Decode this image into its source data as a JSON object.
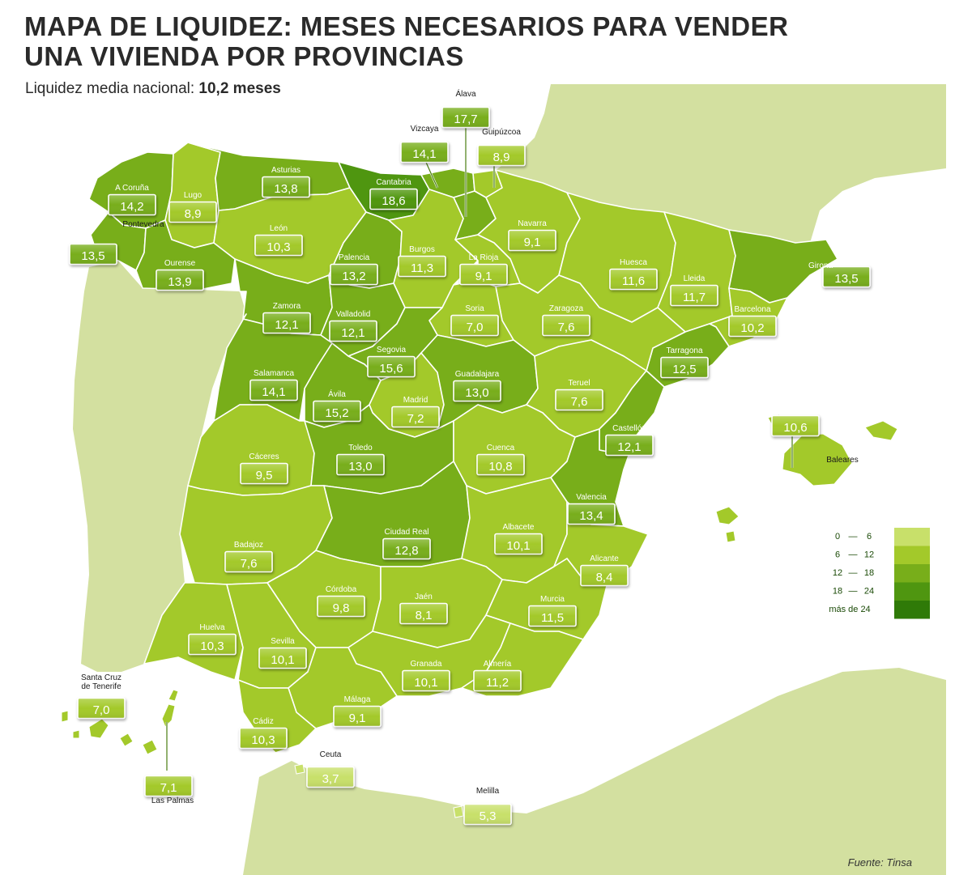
{
  "title_line1": "MAPA DE LIQUIDEZ: MESES NECESARIOS PARA VENDER",
  "title_line2": "UNA VIVIENDA POR PROVINCIAS",
  "subtitle_label": "Liquidez media nacional:",
  "subtitle_value": "10,2 meses",
  "source": "Fuente: Tinsa",
  "colors": {
    "land_other": "#d3e0a0",
    "sea": "#ffffff",
    "border": "#ffffff",
    "bin_0_6": "#c8e06a",
    "bin_6_12": "#a3c92a",
    "bin_12_18": "#78ae1a",
    "bin_18_24": "#4f9610",
    "bin_24_plus": "#2f7a08"
  },
  "legend": [
    {
      "min": "0",
      "max": "6",
      "color": "#c8e06a"
    },
    {
      "min": "6",
      "max": "12",
      "color": "#a3c92a"
    },
    {
      "min": "12",
      "max": "18",
      "color": "#78ae1a"
    },
    {
      "min": "18",
      "max": "24",
      "color": "#4f9610"
    },
    {
      "label": "más de 24",
      "color": "#2f7a08"
    }
  ],
  "provinces": [
    {
      "name": "A Coruña",
      "value": "14,2"
    },
    {
      "name": "Lugo",
      "value": "8,9"
    },
    {
      "name": "Asturias",
      "value": "13,8"
    },
    {
      "name": "Cantabria",
      "value": "18,6"
    },
    {
      "name": "Vizcaya",
      "value": "14,1"
    },
    {
      "name": "Álava",
      "value": "17,7"
    },
    {
      "name": "Guipúzcoa",
      "value": "8,9"
    },
    {
      "name": "Navarra",
      "value": "9,1"
    },
    {
      "name": "Pontevedra",
      "value": "13,5"
    },
    {
      "name": "Ourense",
      "value": "13,9"
    },
    {
      "name": "León",
      "value": "10,3"
    },
    {
      "name": "Palencia",
      "value": "13,2"
    },
    {
      "name": "Burgos",
      "value": "11,3"
    },
    {
      "name": "La Rioja",
      "value": "9,1"
    },
    {
      "name": "Huesca",
      "value": "11,6"
    },
    {
      "name": "Lleida",
      "value": "11,7"
    },
    {
      "name": "Girona",
      "value": "13,5"
    },
    {
      "name": "Barcelona",
      "value": "10,2"
    },
    {
      "name": "Tarragona",
      "value": "12,5"
    },
    {
      "name": "Zaragoza",
      "value": "7,6"
    },
    {
      "name": "Soria",
      "value": "7,0"
    },
    {
      "name": "Zamora",
      "value": "12,1"
    },
    {
      "name": "Valladolid",
      "value": "12,1"
    },
    {
      "name": "Segovia",
      "value": "15,6"
    },
    {
      "name": "Salamanca",
      "value": "14,1"
    },
    {
      "name": "Ávila",
      "value": "15,2"
    },
    {
      "name": "Madrid",
      "value": "7,2"
    },
    {
      "name": "Guadalajara",
      "value": "13,0"
    },
    {
      "name": "Teruel",
      "value": "7,6"
    },
    {
      "name": "Castellón",
      "value": "12,1"
    },
    {
      "name": "Cáceres",
      "value": "9,5"
    },
    {
      "name": "Toledo",
      "value": "13,0"
    },
    {
      "name": "Cuenca",
      "value": "10,8"
    },
    {
      "name": "Valencia",
      "value": "13,4"
    },
    {
      "name": "Baleares",
      "value": "10,6"
    },
    {
      "name": "Badajoz",
      "value": "7,6"
    },
    {
      "name": "Ciudad Real",
      "value": "12,8"
    },
    {
      "name": "Albacete",
      "value": "10,1"
    },
    {
      "name": "Alicante",
      "value": "8,4"
    },
    {
      "name": "Córdoba",
      "value": "9,8"
    },
    {
      "name": "Jaén",
      "value": "8,1"
    },
    {
      "name": "Murcia",
      "value": "11,5"
    },
    {
      "name": "Huelva",
      "value": "10,3"
    },
    {
      "name": "Sevilla",
      "value": "10,1"
    },
    {
      "name": "Granada",
      "value": "10,1"
    },
    {
      "name": "Almería",
      "value": "11,2"
    },
    {
      "name": "Málaga",
      "value": "9,1"
    },
    {
      "name": "Cádiz",
      "value": "10,3"
    },
    {
      "name": "Santa Cruz de Tenerife",
      "value": "7,0"
    },
    {
      "name": "Las Palmas",
      "value": "7,1"
    },
    {
      "name": "Ceuta",
      "value": "3,7"
    },
    {
      "name": "Melilla",
      "value": "5,3"
    }
  ]
}
